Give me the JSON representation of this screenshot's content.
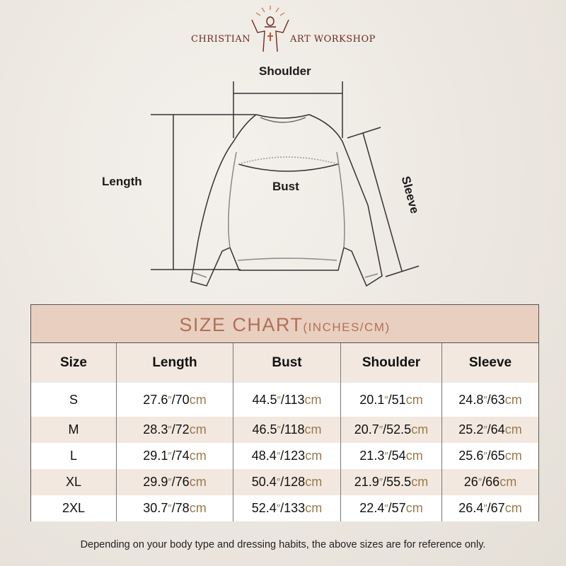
{
  "brand": {
    "left": "CHRISTIAN",
    "right": "ART WORKSHOP",
    "logo_icon": "jesus-open-arms-cross-icon"
  },
  "diagram": {
    "labels": {
      "shoulder": "Shoulder",
      "length": "Length",
      "bust": "Bust",
      "sleeve": "Sleeve"
    }
  },
  "table": {
    "title": "SIZE CHART",
    "title_units": "(INCHES/CM)",
    "headers": [
      "Size",
      "Length",
      "Bust",
      "Shoulder",
      "Sleeve"
    ],
    "unit_inch": "″",
    "unit_cm": "cm",
    "rows": [
      {
        "size": "S",
        "values": [
          [
            "27.6",
            "70"
          ],
          [
            "44.5",
            "113"
          ],
          [
            "20.1",
            "51"
          ],
          [
            "24.8",
            "63"
          ]
        ]
      },
      {
        "size": "M",
        "values": [
          [
            "28.3",
            "72"
          ],
          [
            "46.5",
            "118"
          ],
          [
            "20.7",
            "52.5"
          ],
          [
            "25.2",
            "64"
          ]
        ]
      },
      {
        "size": "L",
        "values": [
          [
            "29.1",
            "74"
          ],
          [
            "48.4",
            "123"
          ],
          [
            "21.3",
            "54"
          ],
          [
            "25.6",
            "65"
          ]
        ]
      },
      {
        "size": "XL",
        "values": [
          [
            "29.9",
            "76"
          ],
          [
            "50.4",
            "128"
          ],
          [
            "21.9",
            "55.5"
          ],
          [
            "26",
            "66"
          ]
        ]
      },
      {
        "size": "2XL",
        "values": [
          [
            "30.7",
            "78"
          ],
          [
            "52.4",
            "133"
          ],
          [
            "22.4",
            "57"
          ],
          [
            "26.4",
            "67"
          ]
        ]
      }
    ],
    "colors": {
      "title_band": "#e9cfbf",
      "header_row": "#f2e8df",
      "title_text": "#b0705a",
      "cm_text": "#9a7a4a"
    }
  },
  "footnote": "Depending on your body type and dressing habits, the above sizes are for reference only."
}
